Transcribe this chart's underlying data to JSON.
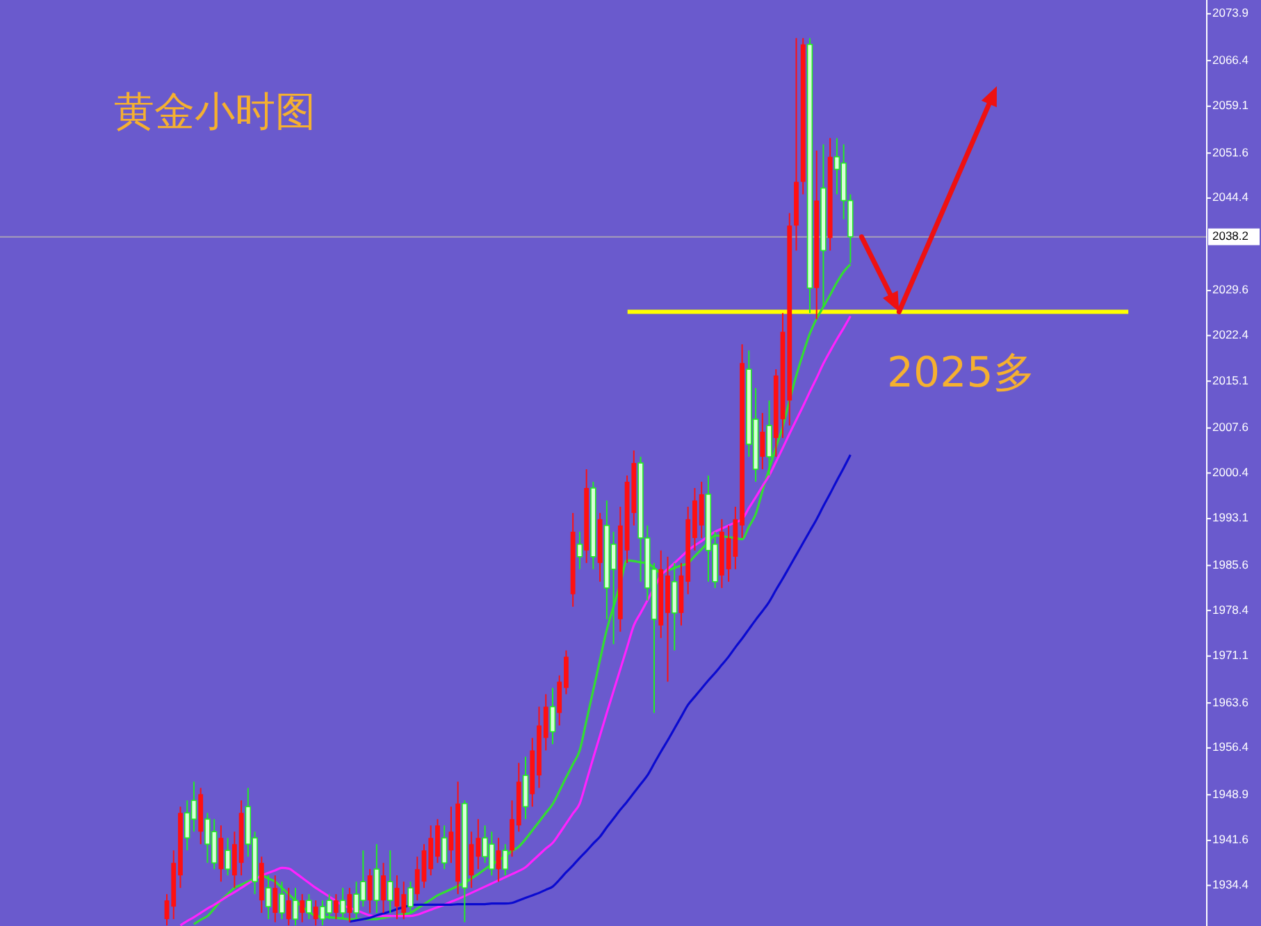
{
  "chart_data": {
    "type": "candlestick",
    "title": "黄金小时图",
    "tick_labels": "y",
    "categories": [
      null,
      null,
      null,
      null,
      null,
      null,
      null,
      null,
      null,
      null,
      null,
      null,
      null,
      null,
      null,
      null,
      null,
      null,
      null,
      null,
      null,
      null,
      null,
      null,
      null,
      null,
      null,
      null,
      null,
      null,
      null,
      null,
      null,
      null,
      null,
      null,
      null,
      null,
      null,
      null,
      null,
      null,
      null,
      null,
      null,
      null,
      null,
      null,
      null,
      null,
      null,
      null,
      null,
      null,
      null,
      null,
      null,
      null,
      null,
      null,
      null,
      null,
      null,
      null,
      null,
      null,
      null,
      null,
      null,
      null,
      null,
      null,
      null,
      null,
      null,
      null,
      null,
      null,
      null,
      null,
      null,
      null,
      null,
      null,
      null,
      null,
      null,
      null,
      null,
      null,
      null,
      null,
      null,
      null,
      null,
      null,
      null,
      null,
      null,
      null,
      null,
      null,
      null,
      null,
      null,
      null,
      null,
      null,
      null,
      null,
      null,
      null,
      null,
      null,
      null,
      null,
      null,
      null,
      null,
      null,
      null,
      null,
      null,
      null,
      null,
      null,
      null,
      null,
      null,
      null,
      null,
      null,
      null,
      null,
      null,
      null,
      null,
      null,
      null,
      null,
      null,
      null,
      null,
      null,
      null,
      null,
      null,
      null,
      null,
      null,
      null,
      null,
      null,
      null,
      null,
      null,
      null,
      null,
      null,
      null,
      null,
      null,
      null,
      null,
      null,
      null,
      null,
      null,
      null,
      null,
      null,
      null,
      null,
      null,
      null,
      null,
      null,
      null
    ],
    "ohlc": [
      null,
      null,
      null,
      null,
      null,
      null,
      null,
      null,
      null,
      null,
      null,
      null,
      null,
      null,
      null,
      null,
      null,
      null,
      null,
      null,
      null,
      null,
      null,
      null,
      [
        1929,
        1933,
        1928,
        1932
      ],
      [
        1931,
        1940,
        1929,
        1938
      ],
      [
        1936,
        1947,
        1934,
        1946
      ],
      [
        1946,
        1948,
        1940,
        1942
      ],
      [
        1948,
        1951,
        1943,
        1945
      ],
      [
        1943,
        1950,
        1941,
        1949
      ],
      [
        1945,
        1946,
        1938,
        1941
      ],
      [
        1943,
        1945,
        1937,
        1938
      ],
      [
        1937,
        1944,
        1935,
        1942
      ],
      [
        1940,
        1942,
        1936,
        1937
      ],
      [
        1936,
        1943,
        1934,
        1941
      ],
      [
        1938,
        1948,
        1936,
        1946
      ],
      [
        1947,
        1950,
        1939,
        1941
      ],
      [
        1942,
        1943,
        1933,
        1935
      ],
      [
        1932,
        1939,
        1930,
        1938
      ],
      [
        1934,
        1936,
        1929,
        1931
      ],
      [
        1930,
        1936,
        1928.5,
        1934
      ],
      [
        1933,
        1935,
        1929,
        1930
      ],
      [
        1929,
        1934,
        1928,
        1932
      ],
      [
        1932,
        1934,
        1928,
        1929
      ],
      [
        1930,
        1933,
        1928.5,
        1932
      ],
      [
        1932,
        1933,
        1929,
        1930
      ],
      [
        1929,
        1932,
        1928,
        1931
      ],
      [
        1931,
        1932,
        1928,
        1929
      ],
      [
        1932,
        1933,
        1929,
        1930
      ],
      [
        1930,
        1933,
        1929,
        1932
      ],
      [
        1932,
        1934,
        1929,
        1930
      ],
      [
        1930,
        1934,
        1928.5,
        1933
      ],
      [
        1933,
        1935,
        1929,
        1930
      ],
      [
        1935,
        1940,
        1931,
        1932
      ],
      [
        1932,
        1937,
        1930,
        1936
      ],
      [
        1937,
        1941,
        1930,
        1932
      ],
      [
        1932,
        1938,
        1930,
        1936
      ],
      [
        1935,
        1940,
        1930,
        1932
      ],
      [
        1931,
        1936,
        1929,
        1934
      ],
      [
        1930,
        1935,
        1929,
        1933
      ],
      [
        1934,
        1935,
        1930,
        1931
      ],
      [
        1933,
        1939,
        1932,
        1937
      ],
      [
        1935,
        1941,
        1934,
        1940
      ],
      [
        1937,
        1944,
        1936,
        1942
      ],
      [
        1939,
        1945,
        1938,
        1944
      ],
      [
        1942,
        1944,
        1937,
        1938
      ],
      [
        1940,
        1947,
        1938,
        1943
      ],
      [
        1935,
        1951,
        1933,
        1947.5
      ],
      [
        1947.5,
        1948,
        1928.5,
        1934
      ],
      [
        1936,
        1943,
        1934,
        1941
      ],
      [
        1939,
        1945,
        1937,
        1942
      ],
      [
        1942,
        1944,
        1938,
        1939
      ],
      [
        1941,
        1943,
        1936,
        1937
      ],
      [
        1937,
        1942,
        1935,
        1940
      ],
      [
        1940,
        1941,
        1936,
        1937
      ],
      [
        1940,
        1948,
        1939,
        1945
      ],
      [
        1944,
        1954,
        1943,
        1951
      ],
      [
        1952,
        1955,
        1945,
        1947
      ],
      [
        1949,
        1958,
        1947,
        1956
      ],
      [
        1952,
        1963,
        1950,
        1960
      ],
      [
        1958,
        1965,
        1956,
        1963
      ],
      [
        1963,
        1966,
        1957,
        1959
      ],
      [
        1962,
        1968,
        1960,
        1967
      ],
      [
        1966,
        1972,
        1965,
        1971
      ],
      [
        1981,
        1994,
        1979,
        1991
      ],
      [
        1989,
        1991,
        1985,
        1987
      ],
      [
        1988,
        2001,
        1986,
        1998
      ],
      [
        1998,
        1999,
        1985,
        1987
      ],
      [
        1986,
        1994,
        1983,
        1993
      ],
      [
        1992,
        1996,
        1977,
        1982
      ],
      [
        1989,
        1991,
        1973,
        1985
      ],
      [
        1977,
        1995,
        1975,
        1992
      ],
      [
        1988,
        2000,
        1986,
        1999
      ],
      [
        1994,
        2004,
        1992,
        2002
      ],
      [
        2002,
        2003,
        1983,
        1990
      ],
      [
        1990,
        1992,
        1980,
        1982
      ],
      [
        1985,
        1986,
        1962,
        1977
      ],
      [
        1976,
        1988,
        1974,
        1985
      ],
      [
        1978,
        1987,
        1967,
        1984
      ],
      [
        1983,
        1986,
        1972,
        1978
      ],
      [
        1978,
        1986,
        1976,
        1984
      ],
      [
        1983,
        1995,
        1981,
        1993
      ],
      [
        1990,
        1998,
        1988,
        1996
      ],
      [
        1992,
        1999,
        1990,
        1997
      ],
      [
        1997,
        2000,
        1983,
        1988
      ],
      [
        1989,
        1991,
        1982,
        1983
      ],
      [
        1984,
        1993,
        1982,
        1991
      ],
      [
        1985,
        1992,
        1983,
        1990
      ],
      [
        1987,
        1995,
        1985,
        1993
      ],
      [
        1992,
        2021,
        1990,
        2018
      ],
      [
        2017,
        2020,
        2003,
        2005
      ],
      [
        2009,
        2014,
        1999,
        2001
      ],
      [
        2003,
        2010,
        2001,
        2007
      ],
      [
        2008,
        2012,
        2000,
        2003
      ],
      [
        2006,
        2017,
        2003,
        2016
      ],
      [
        2009,
        2026,
        2006,
        2023
      ],
      [
        2012,
        2042,
        2008,
        2040
      ],
      [
        2040,
        2070,
        2036,
        2047
      ],
      [
        2047,
        2070,
        2045,
        2069
      ],
      [
        2069,
        2070,
        2026,
        2030
      ],
      [
        2030,
        2052,
        2025,
        2044
      ],
      [
        2046,
        2053,
        2027,
        2036
      ],
      [
        2038,
        2054,
        2036,
        2051
      ],
      [
        2051,
        2054,
        2045,
        2049
      ],
      [
        2050,
        2053,
        2041,
        2044
      ],
      [
        2044,
        2045,
        2034,
        2038.2
      ],
      null,
      null,
      null,
      null,
      null,
      null,
      null,
      null,
      null,
      null,
      null,
      null,
      null,
      null,
      null,
      null,
      null,
      null,
      null,
      null,
      null,
      null,
      null,
      null,
      null,
      null,
      null,
      null,
      null,
      null,
      null,
      null,
      null,
      null,
      null,
      null,
      null,
      null,
      null,
      null,
      null,
      null,
      null,
      null,
      null,
      null,
      null,
      null,
      null,
      null,
      null,
      null
    ],
    "series": [
      {
        "type": "line",
        "color": "#33dd33",
        "values": [
          null,
          null,
          null,
          null,
          null,
          null,
          null,
          null,
          null,
          null,
          null,
          null,
          null,
          null,
          null,
          null,
          null,
          null,
          null,
          null,
          null,
          null,
          null,
          null,
          null,
          null,
          null,
          null,
          1928.2,
          1928.9,
          1929.5,
          1930.7,
          1932,
          1933,
          1934,
          1934.5,
          1935,
          1935.5,
          1936,
          1935.5,
          1935,
          1934,
          1933,
          1932,
          1931,
          1930.2,
          1929.5,
          1929.4,
          1929.3,
          1929.2,
          1929.1,
          1929,
          1929,
          1929,
          1929,
          1929,
          1929.2,
          1929.4,
          1929.6,
          1929.8,
          1930,
          1930.7,
          1931.4,
          1932.1,
          1932.8,
          1933.3,
          1933.8,
          1934.3,
          1934.8,
          1935.5,
          1936.2,
          1937,
          1937.7,
          1938.4,
          1939.1,
          1939.9,
          1940.6,
          1941.8,
          1943.2,
          1944.6,
          1946,
          1947.4,
          1949.5,
          1951.7,
          1953.8,
          1956,
          1960.8,
          1965.6,
          1970.5,
          1975.3,
          1979,
          1982.7,
          1986.4,
          1986.3,
          1986.1,
          1986,
          1985.2,
          1984.4,
          1984.8,
          1985.2,
          1985.6,
          1986,
          1987.1,
          1988.2,
          1989.3,
          1990.4,
          1990.3,
          1990.1,
          1990,
          1989.8,
          1991.8,
          1993.8,
          1997.5,
          2001.1,
          2004.5,
          2007.8,
          2012,
          2016,
          2019.5,
          2022.7,
          2025.1,
          2027,
          2028.9,
          2030.9,
          2032.6,
          2033.8,
          null,
          null,
          null,
          null,
          null,
          null,
          null,
          null,
          null,
          null,
          null,
          null,
          null,
          null,
          null,
          null,
          null,
          null,
          null,
          null,
          null,
          null,
          null,
          null,
          null,
          null,
          null,
          null,
          null,
          null,
          null,
          null,
          null,
          null,
          null,
          null,
          null,
          null,
          null,
          null,
          null,
          null,
          null,
          null,
          null,
          null,
          null,
          null,
          null,
          null,
          null,
          null
        ]
      },
      {
        "type": "line",
        "color": "#ff22ff",
        "values": [
          null,
          null,
          null,
          null,
          null,
          null,
          null,
          null,
          null,
          null,
          null,
          null,
          null,
          null,
          null,
          null,
          null,
          null,
          null,
          null,
          null,
          null,
          null,
          null,
          null,
          null,
          1928,
          1928.7,
          1929.3,
          1930,
          1930.7,
          1931.3,
          1932,
          1932.7,
          1933.3,
          1934,
          1934.7,
          1935.3,
          1936,
          1936.4,
          1936.8,
          1937.2,
          1937.1,
          1936.4,
          1935.6,
          1934.8,
          1934,
          1933.3,
          1932.6,
          1931.9,
          1931.2,
          1930.8,
          1930.4,
          1930,
          1929.6,
          1929.5,
          1929.5,
          1929.5,
          1929.5,
          1929.5,
          1929.5,
          1929.7,
          1930.1,
          1930.5,
          1930.9,
          1931.3,
          1931.8,
          1932.2,
          1932.7,
          1933.2,
          1933.7,
          1934.2,
          1934.7,
          1935.2,
          1935.7,
          1936.2,
          1936.7,
          1937.3,
          1938.3,
          1939.3,
          1940.3,
          1941.2,
          1942.7,
          1944.3,
          1945.9,
          1947.5,
          1951.1,
          1954.8,
          1958.4,
          1962,
          1965.5,
          1969,
          1972.5,
          1976,
          1978,
          1980,
          1982,
          1984,
          1985,
          1986,
          1987,
          1988,
          1988.8,
          1989.5,
          1990.3,
          1991,
          1991.5,
          1992,
          1992.5,
          1993,
          1994.8,
          1996.5,
          1998.3,
          2000,
          2002.2,
          2004.4,
          2006.7,
          2008.9,
          2011.1,
          2013.4,
          2015.6,
          2017.9,
          2019.9,
          2021.8,
          2023.6,
          2025.5,
          null,
          null,
          null,
          null,
          null,
          null,
          null,
          null,
          null,
          null,
          null,
          null,
          null,
          null,
          null,
          null,
          null,
          null,
          null,
          null,
          null,
          null,
          null,
          null,
          null,
          null,
          null,
          null,
          null,
          null,
          null,
          null,
          null,
          null,
          null,
          null,
          null,
          null,
          null,
          null,
          null,
          null,
          null,
          null,
          null,
          null,
          null,
          null,
          null,
          null,
          null,
          null
        ]
      },
      {
        "type": "line",
        "color": "#0a0ad0",
        "values": [
          null,
          null,
          null,
          null,
          null,
          null,
          null,
          null,
          null,
          null,
          null,
          null,
          null,
          null,
          null,
          null,
          null,
          null,
          null,
          null,
          null,
          null,
          null,
          null,
          null,
          null,
          null,
          null,
          null,
          null,
          null,
          null,
          null,
          null,
          null,
          null,
          null,
          null,
          null,
          null,
          null,
          null,
          null,
          null,
          null,
          null,
          null,
          null,
          null,
          null,
          null,
          1928.6,
          1928.8,
          1929,
          1929.2,
          1929.6,
          1929.9,
          1930.2,
          1930.6,
          1930.9,
          1931.2,
          1931.3,
          1931.3,
          1931.3,
          1931.3,
          1931.3,
          1931.3,
          1931.4,
          1931.4,
          1931.4,
          1931.4,
          1931.4,
          1931.5,
          1931.5,
          1931.5,
          1931.6,
          1932,
          1932.4,
          1932.8,
          1933.2,
          1933.7,
          1934.2,
          1935.3,
          1936.5,
          1937.6,
          1938.8,
          1939.9,
          1941.1,
          1942.2,
          1943.7,
          1945.1,
          1946.5,
          1947.8,
          1949.2,
          1950.6,
          1952,
          1953.9,
          1955.8,
          1957.6,
          1959.5,
          1961.4,
          1963.3,
          1964.6,
          1965.9,
          1967.2,
          1968.4,
          1969.7,
          1971,
          1972.5,
          1973.9,
          1975.4,
          1976.9,
          1978.3,
          1979.8,
          1981.7,
          1983.5,
          1985.4,
          1987.3,
          1989.2,
          1991.1,
          1993,
          1995.1,
          1997.1,
          1999.2,
          2001.2,
          2003.3,
          null,
          null,
          null,
          null,
          null,
          null,
          null,
          null,
          null,
          null,
          null,
          null,
          null,
          null,
          null,
          null,
          null,
          null,
          null,
          null,
          null,
          null,
          null,
          null,
          null,
          null,
          null,
          null,
          null,
          null,
          null,
          null,
          null,
          null,
          null,
          null,
          null,
          null,
          null,
          null,
          null,
          null,
          null,
          null,
          null,
          null,
          null,
          null,
          null,
          null,
          null,
          null
        ]
      }
    ],
    "ylim": [
      1927.9,
      2076.1
    ],
    "yticks": [
      1934.4,
      1941.6,
      1948.9,
      1956.4,
      1963.6,
      1971.1,
      1978.4,
      1985.6,
      1993.1,
      2000.4,
      2007.6,
      2015.1,
      2022.4,
      2029.6,
      2044.4,
      2051.6,
      2059.1,
      2066.4,
      2073.9
    ],
    "ref_lines": [
      {
        "axis": "y",
        "value": 2038.2,
        "label": "2038.2",
        "color": "#a8a0b8"
      },
      {
        "axis": "y",
        "value": 2026.2,
        "label": "2025多",
        "color": "#ffff00"
      }
    ]
  }
}
